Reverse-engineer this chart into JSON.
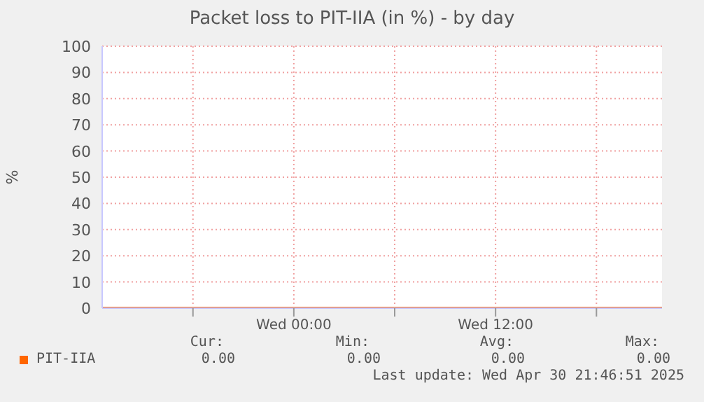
{
  "chart_data": {
    "type": "line",
    "title": "Packet loss to PIT-IIA (in %) - by day",
    "ylabel": "%",
    "x": [
      "2025-04-29T12:36",
      "2025-04-30T21:54"
    ],
    "series": [
      {
        "name": "PIT-IIA",
        "color": "#ff6600",
        "values": [
          0,
          0
        ]
      }
    ],
    "xlim": [
      "2025-04-29T12:36",
      "2025-04-30T21:54"
    ],
    "xticks": [
      {
        "value": "2025-04-29T18:00",
        "label": null
      },
      {
        "value": "2025-04-30T00:00",
        "label": "Wed 00:00"
      },
      {
        "value": "2025-04-30T06:00",
        "label": null
      },
      {
        "value": "2025-04-30T12:00",
        "label": "Wed 12:00"
      },
      {
        "value": "2025-04-30T18:00",
        "label": null
      }
    ],
    "ylim": [
      0,
      100
    ],
    "yticks": [
      0,
      10,
      20,
      30,
      40,
      50,
      60,
      70,
      80,
      90,
      100
    ],
    "grid": true,
    "legend": "bottom",
    "marker": "none",
    "line_style": "solid",
    "annotations": [
      "Cur:",
      "Min:",
      "Avg:",
      "Max:",
      "0.00",
      "0.00",
      "0.00",
      "0.00",
      "Last update: Wed Apr 30 21:46:51 2025"
    ]
  }
}
